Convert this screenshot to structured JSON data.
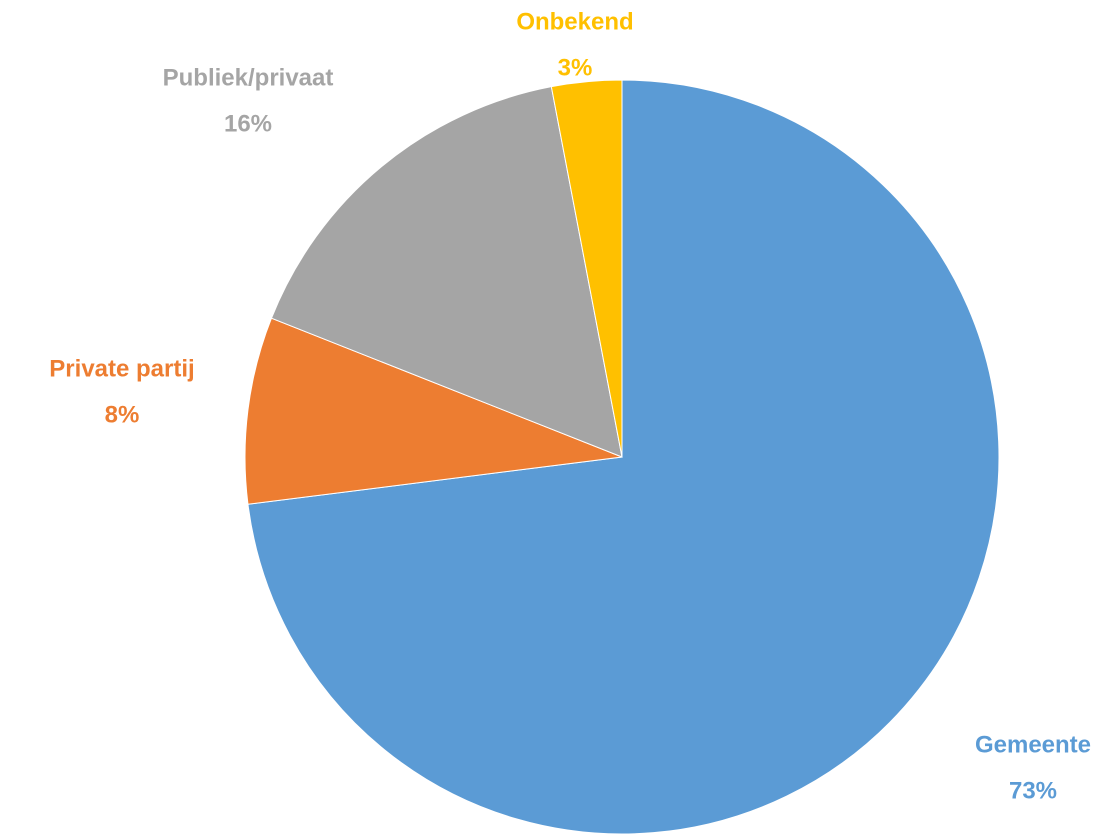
{
  "chart_data": {
    "type": "pie",
    "categories": [
      "Gemeente",
      "Private partij",
      "Publiek/privaat",
      "Onbekend"
    ],
    "values": [
      73,
      8,
      16,
      3
    ],
    "value_labels": [
      "73%",
      "8%",
      "16%",
      "3%"
    ],
    "colors": [
      "#5B9BD5",
      "#ED7D31",
      "#A5A5A5",
      "#FFC000"
    ]
  }
}
